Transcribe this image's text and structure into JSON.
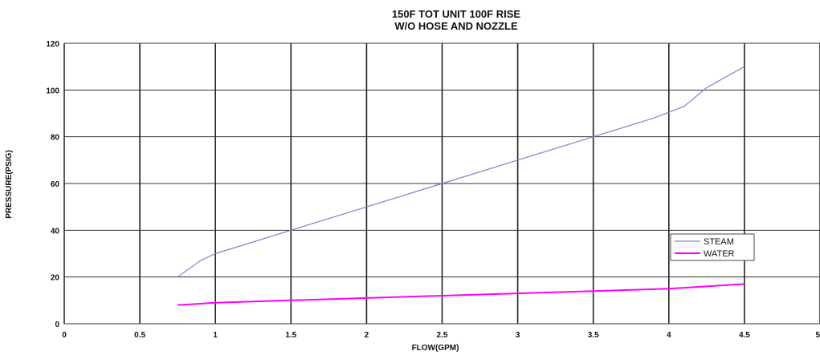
{
  "chart_data": {
    "type": "line",
    "title": "150F  TOT UNIT 100F RISE",
    "subtitle": "W/O HOSE AND NOZZLE",
    "xlabel": "FLOW(GPM)",
    "ylabel": "PRESSURE(PSIG)",
    "xlim": [
      0,
      5
    ],
    "ylim": [
      0,
      120
    ],
    "x_ticks": [
      "0",
      "0.5",
      "1",
      "1.5",
      "2",
      "2.5",
      "3",
      "3.5",
      "4",
      "4.5",
      "5"
    ],
    "y_ticks": [
      "0",
      "20",
      "40",
      "60",
      "80",
      "100",
      "120"
    ],
    "grid": true,
    "legend_position": "right",
    "series": [
      {
        "name": "STEAM",
        "color": "#8080d0",
        "points": [
          [
            0.75,
            20
          ],
          [
            0.9,
            27
          ],
          [
            1.0,
            30
          ],
          [
            1.5,
            40
          ],
          [
            2.0,
            50
          ],
          [
            2.5,
            60
          ],
          [
            3.0,
            70
          ],
          [
            3.5,
            80
          ],
          [
            3.9,
            88
          ],
          [
            4.1,
            93
          ],
          [
            4.25,
            101
          ],
          [
            4.5,
            110
          ]
        ]
      },
      {
        "name": "WATER",
        "color": "#ff00ff",
        "points": [
          [
            0.75,
            8
          ],
          [
            1.0,
            9
          ],
          [
            1.5,
            10
          ],
          [
            2.0,
            11
          ],
          [
            2.5,
            12
          ],
          [
            3.0,
            13
          ],
          [
            3.5,
            14
          ],
          [
            4.0,
            15
          ],
          [
            4.5,
            17
          ]
        ]
      }
    ]
  }
}
